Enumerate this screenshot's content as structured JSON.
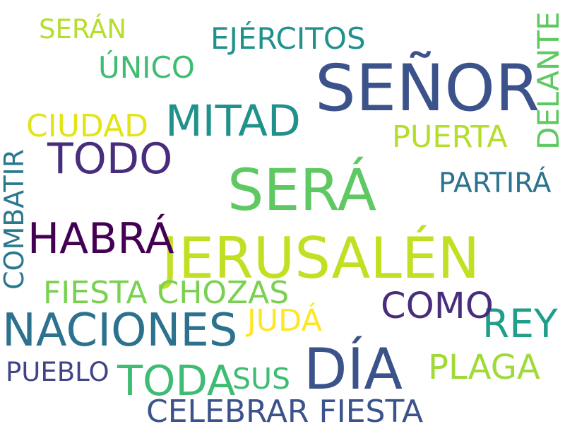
{
  "words": [
    {
      "text": "SEÑOR",
      "color": "#3b528b"
    },
    {
      "text": "SERÁ",
      "color": "#5ec962"
    },
    {
      "text": "JERUSALÉN",
      "color": "#c2df23"
    },
    {
      "text": "DÍA",
      "color": "#3b528b"
    },
    {
      "text": "NACIONES",
      "color": "#2c728e"
    },
    {
      "text": "MITAD",
      "color": "#21918c"
    },
    {
      "text": "TODO",
      "color": "#472d7b"
    },
    {
      "text": "HABRÁ",
      "color": "#440154"
    },
    {
      "text": "TODA",
      "color": "#3fbc73"
    },
    {
      "text": "REY",
      "color": "#1f9e89"
    },
    {
      "text": "COMO",
      "color": "#472d7b"
    },
    {
      "text": "CELEBRAR FIESTA",
      "color": "#3b528b"
    },
    {
      "text": "PLAGA",
      "color": "#a0da39"
    },
    {
      "text": "FIESTA CHOZAS",
      "color": "#7ad151"
    },
    {
      "text": "EJÉRCITOS",
      "color": "#21918c"
    },
    {
      "text": "CIUDAD",
      "color": "#e2e418"
    },
    {
      "text": "ÚNICO",
      "color": "#3fbc73"
    },
    {
      "text": "PUERTA",
      "color": "#b5de2b"
    },
    {
      "text": "DELANTE",
      "color": "#5ec962"
    },
    {
      "text": "COMBATIR",
      "color": "#2a788e"
    },
    {
      "text": "PARTIRÁ",
      "color": "#2c728e"
    },
    {
      "text": "JUDÁ",
      "color": "#fde725"
    },
    {
      "text": "SUS",
      "color": "#3fbc73"
    },
    {
      "text": "PUEBLO",
      "color": "#414487"
    },
    {
      "text": "SERÁN",
      "color": "#b5de2b"
    }
  ]
}
